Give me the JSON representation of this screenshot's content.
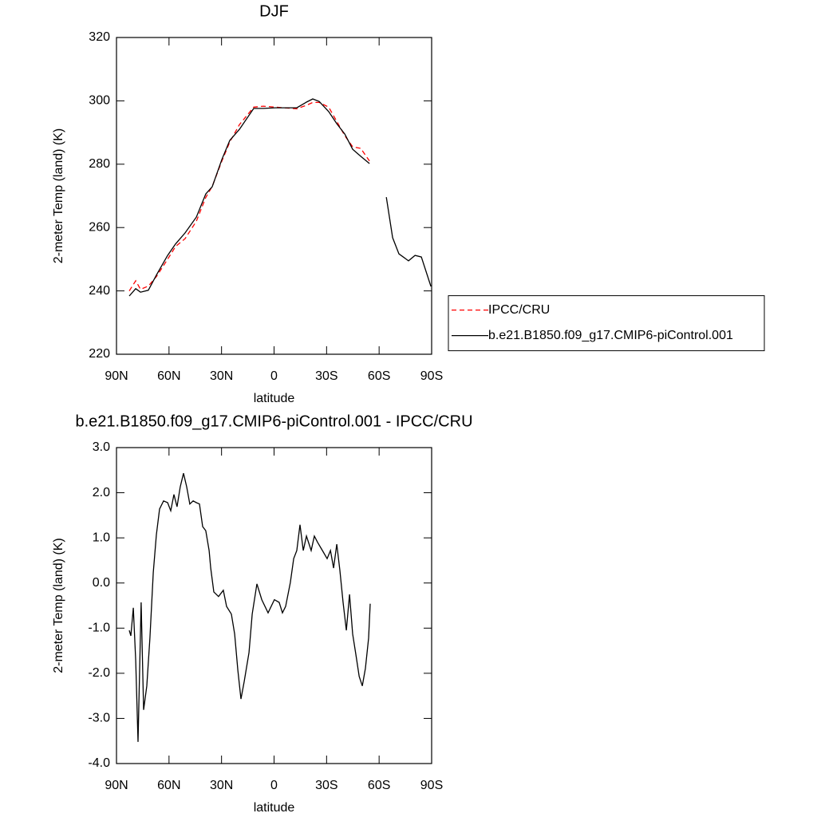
{
  "chart_data": [
    {
      "type": "line",
      "title": "DJF",
      "xlabel": "latitude",
      "ylabel": "2-meter Temp (land) (K)",
      "x": [
        82.7,
        79,
        76.3,
        71.8,
        67.2,
        60.8,
        56.3,
        50.8,
        44.4,
        39,
        35.3,
        29.8,
        25.3,
        19.8,
        11.6,
        6.1,
        -0.7,
        -13,
        -18.5,
        -22.1,
        -25.8,
        -31.2,
        -35.8,
        -40.4,
        -44.9,
        -49.5,
        -54.5,
        -59,
        -64.1,
        -67.7,
        -71.3,
        -76.8,
        -80.5,
        -84.1,
        -89.6
      ],
      "series": [
        {
          "name": "IPCC/CRU",
          "color": "#ff0000",
          "style": "dashed",
          "values": [
            240,
            243.2,
            240.5,
            241.5,
            244.5,
            250,
            254,
            256.5,
            262,
            269.5,
            273,
            281,
            287,
            292.5,
            298,
            298.3,
            298,
            297.5,
            298.6,
            299.5,
            299.5,
            298,
            293.5,
            289,
            285.5,
            285,
            281,
            null,
            null,
            null,
            null,
            null,
            null,
            null,
            null
          ]
        },
        {
          "name": "b.e21.B1850.f09_g17.CMIP6-piControl.001",
          "color": "#000000",
          "style": "solid",
          "values": [
            238.4,
            240.7,
            239.6,
            240.2,
            245,
            251.2,
            254.8,
            258.3,
            263.3,
            270.6,
            272.9,
            281.5,
            287.5,
            291,
            297.6,
            297.6,
            297.8,
            297.8,
            299.6,
            300.6,
            299.8,
            296.6,
            292.8,
            289.5,
            284.7,
            282.5,
            280.2,
            null,
            269.6,
            256.8,
            251.7,
            249.5,
            251.2,
            250.7,
            241.4
          ]
        }
      ],
      "xlim": [
        90,
        -90
      ],
      "xticks": [
        {
          "value": 90,
          "label": "90N"
        },
        {
          "value": 60,
          "label": "60N"
        },
        {
          "value": 30,
          "label": "30N"
        },
        0,
        {
          "value": -30,
          "label": "30S"
        },
        {
          "value": -60,
          "label": "60S"
        },
        {
          "value": -90,
          "label": "90S"
        }
      ],
      "ylim": [
        220,
        320
      ],
      "yticks": [
        220,
        240,
        260,
        280,
        300,
        320
      ],
      "legend": "right"
    },
    {
      "type": "line",
      "title": "b.e21.B1850.f09_g17.CMIP6-piControl.001 - IPCC/CRU",
      "xlabel": "latitude",
      "ylabel": "2-meter Temp (land) (K)",
      "x": [
        82.7,
        81.8,
        80.4,
        79,
        77.7,
        75.9,
        74.5,
        72.7,
        70.9,
        69,
        67.2,
        65.4,
        63.1,
        60.8,
        59,
        57.2,
        55.4,
        53.6,
        51.7,
        49.9,
        48.1,
        46.2,
        44.4,
        42.6,
        40.8,
        39,
        37.1,
        36.2,
        34.4,
        31.7,
        29,
        27.1,
        24.4,
        22.5,
        20.7,
        18.9,
        17.1,
        14.3,
        12.5,
        9.8,
        7,
        3.4,
        -0.2,
        -2.9,
        -4.8,
        -6.6,
        -9.3,
        -11.2,
        -13,
        -14.8,
        -16.7,
        -18.5,
        -21.2,
        -23,
        -24.9,
        -27.6,
        -30.3,
        -32.2,
        -34,
        -35.8,
        -37.6,
        -39.4,
        -41.3,
        -43.1,
        -44.9,
        -46.7,
        -48.6,
        -50.4,
        -52.2,
        -54,
        -54.9
      ],
      "values": [
        -1.05,
        -1.17,
        -0.55,
        -1.72,
        -3.52,
        -0.43,
        -2.81,
        -2.28,
        -1.22,
        0.23,
        1.07,
        1.64,
        1.82,
        1.78,
        1.6,
        1.96,
        1.69,
        2.13,
        2.43,
        2.13,
        1.75,
        1.82,
        1.78,
        1.75,
        1.25,
        1.16,
        0.72,
        0.33,
        -0.2,
        -0.3,
        -0.16,
        -0.52,
        -0.69,
        -1.13,
        -1.93,
        -2.57,
        -2.19,
        -1.54,
        -0.69,
        -0.02,
        -0.37,
        -0.66,
        -0.37,
        -0.43,
        -0.66,
        -0.52,
        0.01,
        0.54,
        0.72,
        1.29,
        0.72,
        1.04,
        0.72,
        1.04,
        0.9,
        0.72,
        0.54,
        0.72,
        0.33,
        0.86,
        0.28,
        -0.43,
        -1.05,
        -0.25,
        -1.13,
        -1.58,
        -2.07,
        -2.28,
        -1.89,
        -1.22,
        -0.46
      ],
      "color": "#000000",
      "xlim": [
        90,
        -90
      ],
      "xticks": [
        {
          "value": 90,
          "label": "90N"
        },
        {
          "value": 60,
          "label": "60N"
        },
        {
          "value": 30,
          "label": "30N"
        },
        0,
        {
          "value": -30,
          "label": "30S"
        },
        {
          "value": -60,
          "label": "60S"
        },
        {
          "value": -90,
          "label": "90S"
        }
      ],
      "ylim": [
        -4,
        3
      ],
      "yticks": [
        {
          "value": -4,
          "label": "-4.0"
        },
        {
          "value": -3,
          "label": "-3.0"
        },
        {
          "value": -2,
          "label": "-2.0"
        },
        {
          "value": -1,
          "label": "-1.0"
        },
        {
          "value": 0,
          "label": "0.0"
        },
        {
          "value": 1,
          "label": "1.0"
        },
        {
          "value": 2,
          "label": "2.0"
        },
        {
          "value": 3,
          "label": "3.0"
        }
      ]
    }
  ]
}
